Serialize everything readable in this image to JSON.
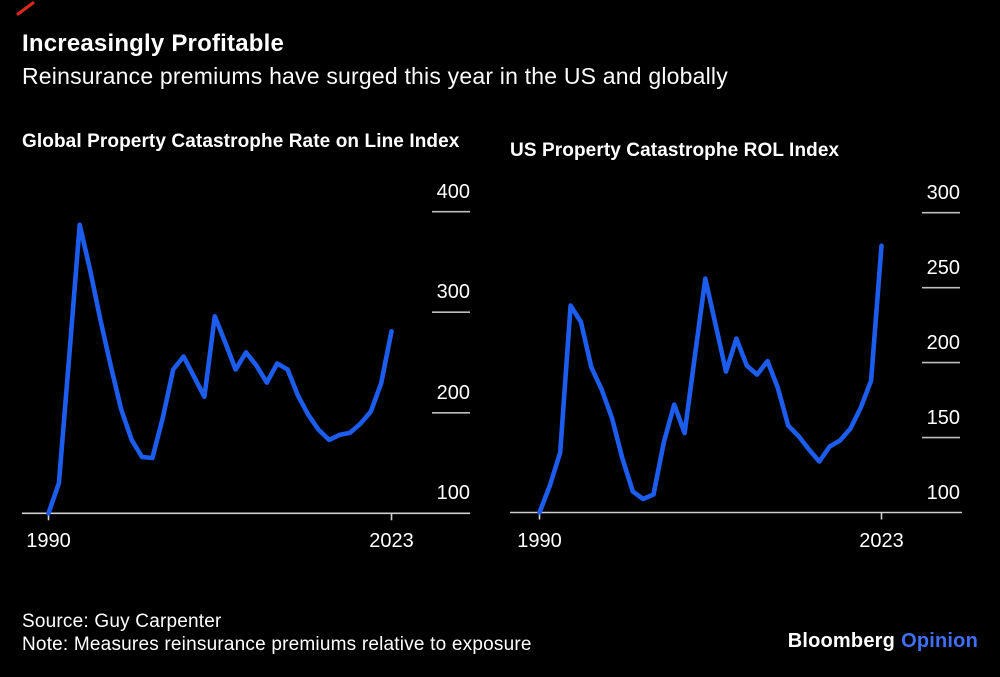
{
  "page": {
    "background": "#000000",
    "accent_blue": "#1c5dee",
    "axis_color": "#cfcfcf",
    "grid_tick_color": "#bdbdbd",
    "annotation_red": "#e0281c"
  },
  "header": {
    "title": "Increasingly Profitable",
    "subtitle": "Reinsurance premiums have surged this year in the US and globally"
  },
  "footer": {
    "source": "Source: Guy Carpenter",
    "note": "Note: Measures reinsurance premiums relative to exposure",
    "logo": {
      "brand": "Bloomberg",
      "suffix": "Opinion",
      "suffix_color": "#3e6ff6"
    }
  },
  "chart_data": [
    {
      "id": "global",
      "type": "line",
      "title": "Global Property Catastrophe Rate on Line Index",
      "legend": "none",
      "grid": "short right-aligned rules under each y label",
      "line_color": "#1c5dee",
      "ylim": [
        100,
        400
      ],
      "yticks": [
        400,
        300,
        200,
        100
      ],
      "xticks": [
        1990,
        2023
      ],
      "x": [
        1990,
        1991,
        1992,
        1993,
        1994,
        1995,
        1996,
        1997,
        1998,
        1999,
        2000,
        2001,
        2002,
        2003,
        2004,
        2005,
        2006,
        2007,
        2008,
        2009,
        2010,
        2011,
        2012,
        2013,
        2014,
        2015,
        2016,
        2017,
        2018,
        2019,
        2020,
        2021,
        2022,
        2023
      ],
      "values": [
        100,
        130,
        257,
        387,
        342,
        292,
        246,
        203,
        173,
        156,
        155,
        195,
        243,
        256,
        236,
        216,
        296,
        270,
        243,
        260,
        247,
        230,
        249,
        243,
        217,
        198,
        183,
        173,
        178,
        180,
        189,
        201,
        229,
        281
      ]
    },
    {
      "id": "us",
      "type": "line",
      "title": "US Property Catastrophe ROL Index",
      "legend": "none",
      "grid": "short right-aligned rules under each y label",
      "line_color": "#1c5dee",
      "ylim": [
        100,
        300
      ],
      "yticks": [
        300,
        250,
        200,
        150,
        100
      ],
      "xticks": [
        1990,
        2023
      ],
      "x": [
        1990,
        1991,
        1992,
        1993,
        1994,
        1995,
        1996,
        1997,
        1998,
        1999,
        2000,
        2001,
        2002,
        2003,
        2004,
        2005,
        2006,
        2007,
        2008,
        2009,
        2010,
        2011,
        2012,
        2013,
        2014,
        2015,
        2016,
        2017,
        2018,
        2019,
        2020,
        2021,
        2022,
        2023
      ],
      "values": [
        100,
        118,
        140,
        238,
        227,
        197,
        182,
        163,
        136,
        114,
        109,
        112,
        147,
        172,
        153,
        205,
        256,
        225,
        194,
        216,
        198,
        192,
        201,
        183,
        158,
        151,
        142,
        134,
        144,
        148,
        156,
        170,
        188,
        278
      ]
    }
  ]
}
